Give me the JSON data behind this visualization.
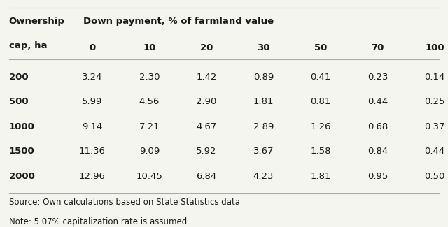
{
  "col_header_line1": "Down payment, % of farmland value",
  "col_header_line2": [
    "0",
    "10",
    "20",
    "30",
    "50",
    "70",
    "100"
  ],
  "row_header_label_line1": "Ownership",
  "row_header_label_line2": "cap, ha",
  "rows": [
    {
      "cap": "200",
      "values": [
        "3.24",
        "2.30",
        "1.42",
        "0.89",
        "0.41",
        "0.23",
        "0.14"
      ]
    },
    {
      "cap": "500",
      "values": [
        "5.99",
        "4.56",
        "2.90",
        "1.81",
        "0.81",
        "0.44",
        "0.25"
      ]
    },
    {
      "cap": "1000",
      "values": [
        "9.14",
        "7.21",
        "4.67",
        "2.89",
        "1.26",
        "0.68",
        "0.37"
      ]
    },
    {
      "cap": "1500",
      "values": [
        "11.36",
        "9.09",
        "5.92",
        "3.67",
        "1.58",
        "0.84",
        "0.44"
      ]
    },
    {
      "cap": "2000",
      "values": [
        "12.96",
        "10.45",
        "6.84",
        "4.23",
        "1.81",
        "0.95",
        "0.50"
      ]
    }
  ],
  "source_text": "Source: Own calculations based on State Statistics data",
  "note_text": "Note: 5.07% capitalization rate is assumed",
  "bg_color": "#f5f5f0",
  "text_color": "#1a1a1a",
  "line_color": "#aaaaaa",
  "header_font_size": 9.5,
  "cell_font_size": 9.5,
  "footer_font_size": 8.5
}
